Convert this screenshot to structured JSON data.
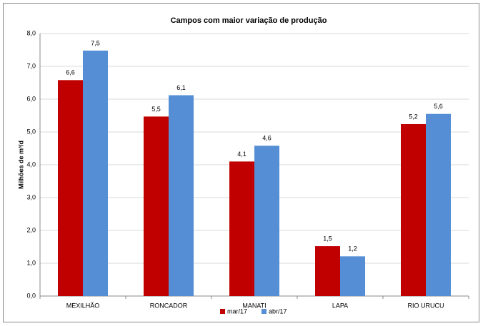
{
  "chart_data": {
    "type": "bar",
    "title": "Campos com maior variação de produção",
    "y_label": "Milhões de m³/d",
    "categories": [
      "MEXILHÃO",
      "RONCADOR",
      "MANATI",
      "LAPA",
      "RIO URUCU"
    ],
    "series": [
      {
        "name": "mar/17",
        "color": "#c00000",
        "values": [
          6.58,
          5.47,
          4.1,
          1.52,
          5.24
        ],
        "value_labels": [
          "6,6",
          "5,5",
          "4,1",
          "1,5",
          "5,2"
        ]
      },
      {
        "name": "abr/17",
        "color": "#558ed5",
        "values": [
          7.48,
          6.12,
          4.58,
          1.21,
          5.55
        ],
        "value_labels": [
          "7,5",
          "6,1",
          "4,6",
          "1,2",
          "5,6"
        ]
      }
    ],
    "ylim": [
      0,
      8
    ],
    "yticks": [
      {
        "value": 0,
        "label": "0,0"
      },
      {
        "value": 1,
        "label": "1,0"
      },
      {
        "value": 2,
        "label": "2,0"
      },
      {
        "value": 3,
        "label": "3,0"
      },
      {
        "value": 4,
        "label": "4,0"
      },
      {
        "value": 5,
        "label": "5,0"
      },
      {
        "value": 6,
        "label": "6,0"
      },
      {
        "value": 7,
        "label": "7,0"
      },
      {
        "value": 8,
        "label": "8,0"
      }
    ],
    "grid": true,
    "legend": "bottom"
  }
}
